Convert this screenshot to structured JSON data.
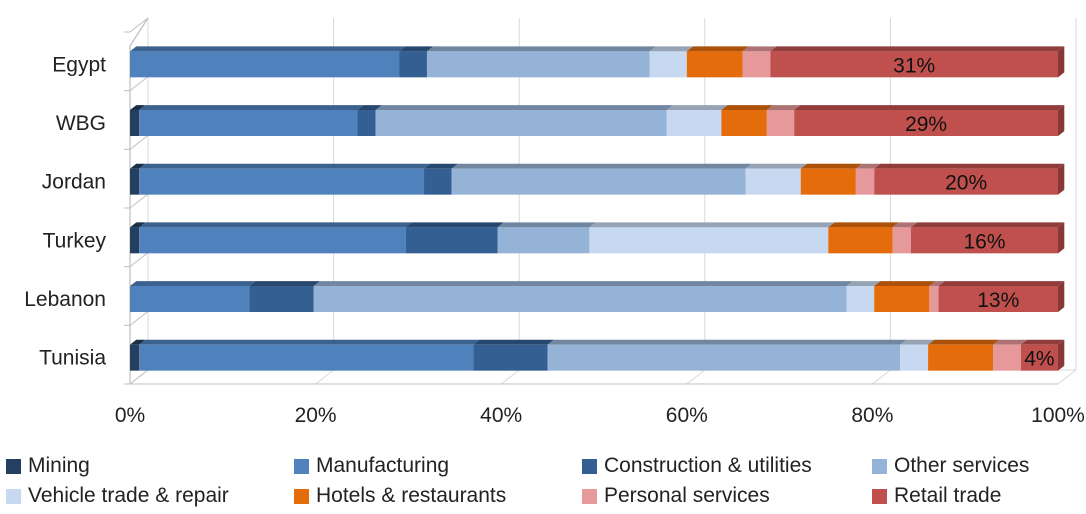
{
  "chart_data": {
    "type": "bar",
    "orientation": "horizontal",
    "stacked": "percent",
    "categories": [
      "Egypt",
      "WBG",
      "Jordan",
      "Turkey",
      "Lebanon",
      "Tunisia"
    ],
    "series": [
      {
        "name": "Mining",
        "color": "#243f60",
        "values": [
          0,
          1,
          1,
          1,
          0,
          1
        ]
      },
      {
        "name": "Manufacturing",
        "color": "#4f81bd",
        "values": [
          29,
          24,
          31,
          29,
          13,
          36
        ]
      },
      {
        "name": "Construction & utilities",
        "color": "#345f92",
        "values": [
          3,
          2,
          3,
          10,
          7,
          8
        ]
      },
      {
        "name": "Other services",
        "color": "#95b3d7",
        "values": [
          24,
          32,
          32,
          10,
          58,
          38
        ]
      },
      {
        "name": "Vehicle trade & repair",
        "color": "#c6d9f1",
        "values": [
          4,
          6,
          6,
          26,
          3,
          3
        ]
      },
      {
        "name": "Hotels & restaurants",
        "color": "#e46c0a",
        "values": [
          6,
          5,
          6,
          7,
          6,
          7
        ]
      },
      {
        "name": "Personal services",
        "color": "#e6999a",
        "values": [
          3,
          3,
          2,
          2,
          1,
          3
        ]
      },
      {
        "name": "Retail trade",
        "color": "#c0504d",
        "values": [
          31,
          29,
          20,
          16,
          13,
          4
        ]
      }
    ],
    "data_labels": [
      "31%",
      "29%",
      "20%",
      "16%",
      "13%",
      "4%"
    ],
    "x_ticks": [
      "0%",
      "20%",
      "40%",
      "60%",
      "80%",
      "100%"
    ],
    "xlim": [
      0,
      100
    ],
    "grid": "vertical",
    "legend_position": "bottom",
    "title": "",
    "xlabel": "",
    "ylabel": ""
  }
}
